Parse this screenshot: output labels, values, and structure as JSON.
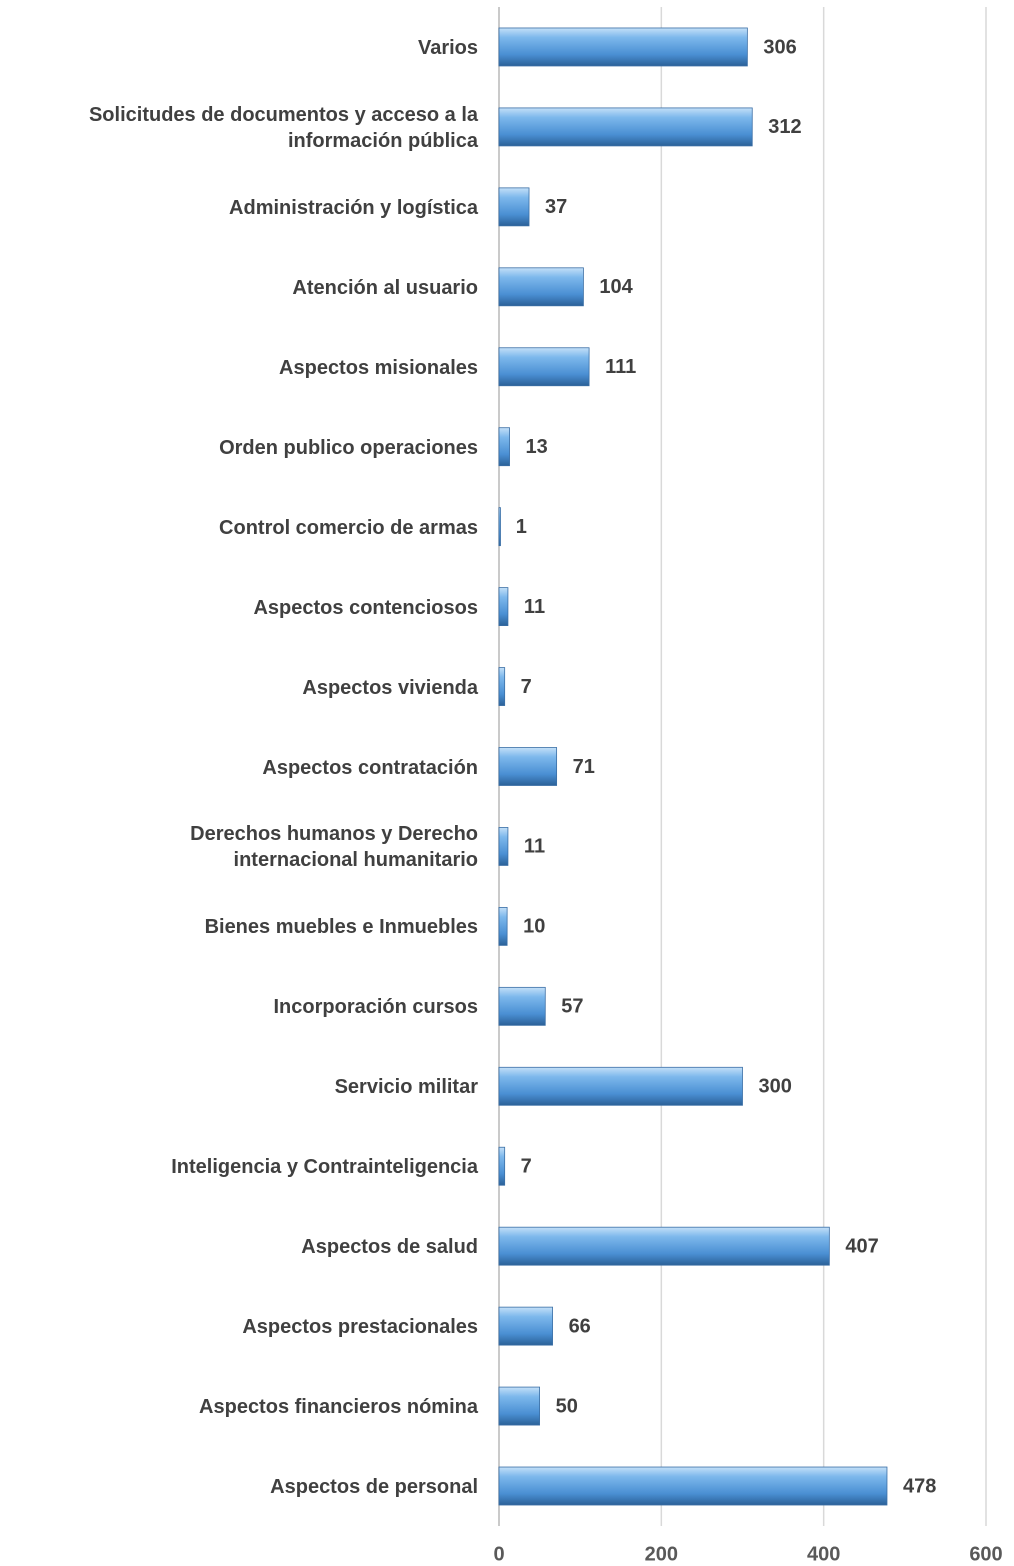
{
  "chart_data": {
    "type": "bar",
    "orientation": "horizontal",
    "categories": [
      "Varios",
      "Solicitudes de documentos y acceso a la\ninformación pública",
      "Administración y logística",
      "Atención al usuario",
      "Aspectos misionales",
      "Orden publico operaciones",
      "Control comercio de armas",
      "Aspectos contenciosos",
      "Aspectos vivienda",
      "Aspectos contratación",
      "Derechos humanos y Derecho\ninternacional humanitario",
      "Bienes muebles e Inmuebles",
      "Incorporación cursos",
      "Servicio militar",
      "Inteligencia y Contrainteligencia",
      "Aspectos de salud",
      "Aspectos prestacionales",
      "Aspectos financieros nómina",
      "Aspectos de personal"
    ],
    "values": [
      306,
      312,
      37,
      104,
      111,
      13,
      1,
      11,
      7,
      71,
      11,
      10,
      57,
      300,
      7,
      407,
      66,
      50,
      478
    ],
    "color": "#5b9bd5",
    "xlim": [
      0,
      600
    ],
    "xticks": [
      0,
      200,
      400,
      600
    ],
    "grid": true
  }
}
